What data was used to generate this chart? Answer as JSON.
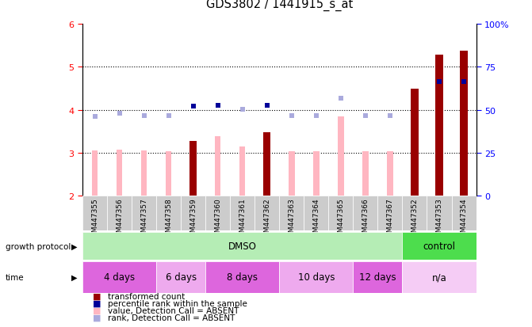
{
  "title": "GDS3802 / 1441915_s_at",
  "samples": [
    "GSM447355",
    "GSM447356",
    "GSM447357",
    "GSM447358",
    "GSM447359",
    "GSM447360",
    "GSM447361",
    "GSM447362",
    "GSM447363",
    "GSM447364",
    "GSM447365",
    "GSM447366",
    "GSM447367",
    "GSM447352",
    "GSM447353",
    "GSM447354"
  ],
  "transformed_count": [
    null,
    null,
    null,
    null,
    3.28,
    null,
    null,
    3.48,
    null,
    null,
    null,
    null,
    null,
    4.5,
    5.28,
    5.38
  ],
  "transformed_count_absent": [
    3.05,
    3.07,
    3.05,
    3.04,
    null,
    3.38,
    3.15,
    null,
    3.03,
    3.04,
    3.84,
    3.04,
    3.04,
    null,
    null,
    null
  ],
  "percentile_rank": [
    null,
    null,
    null,
    null,
    4.08,
    4.1,
    null,
    4.1,
    null,
    null,
    null,
    null,
    null,
    null,
    4.65,
    4.65
  ],
  "percentile_rank_absent": [
    3.85,
    3.93,
    3.87,
    3.86,
    null,
    null,
    4.02,
    null,
    3.87,
    3.87,
    4.27,
    3.87,
    3.87,
    null,
    null,
    null
  ],
  "ylim": [
    2,
    6
  ],
  "y2lim": [
    0,
    100
  ],
  "yticks": [
    2,
    3,
    4,
    5,
    6
  ],
  "y2ticks": [
    0,
    25,
    50,
    75,
    100
  ],
  "dotted_lines": [
    3,
    4,
    5
  ],
  "bar_color_present": "#990000",
  "bar_color_absent": "#ffb6c1",
  "dot_color_present": "#000099",
  "dot_color_absent": "#aaaadd",
  "sample_box_color": "#cccccc",
  "growth_protocol": [
    {
      "label": "DMSO",
      "start": 0,
      "end": 13,
      "color": "#b5edb5"
    },
    {
      "label": "control",
      "start": 13,
      "end": 16,
      "color": "#4ddd4d"
    }
  ],
  "time_groups": [
    {
      "label": "4 days",
      "start": 0,
      "end": 3,
      "color": "#dd66dd"
    },
    {
      "label": "6 days",
      "start": 3,
      "end": 5,
      "color": "#eeaaee"
    },
    {
      "label": "8 days",
      "start": 5,
      "end": 8,
      "color": "#dd66dd"
    },
    {
      "label": "10 days",
      "start": 8,
      "end": 11,
      "color": "#eeaaee"
    },
    {
      "label": "12 days",
      "start": 11,
      "end": 13,
      "color": "#dd66dd"
    },
    {
      "label": "n/a",
      "start": 13,
      "end": 16,
      "color": "#f5ccf5"
    }
  ],
  "legend_items": [
    {
      "label": "transformed count",
      "color": "#990000"
    },
    {
      "label": "percentile rank within the sample",
      "color": "#000099"
    },
    {
      "label": "value, Detection Call = ABSENT",
      "color": "#ffb6c1"
    },
    {
      "label": "rank, Detection Call = ABSENT",
      "color": "#aaaadd"
    }
  ]
}
